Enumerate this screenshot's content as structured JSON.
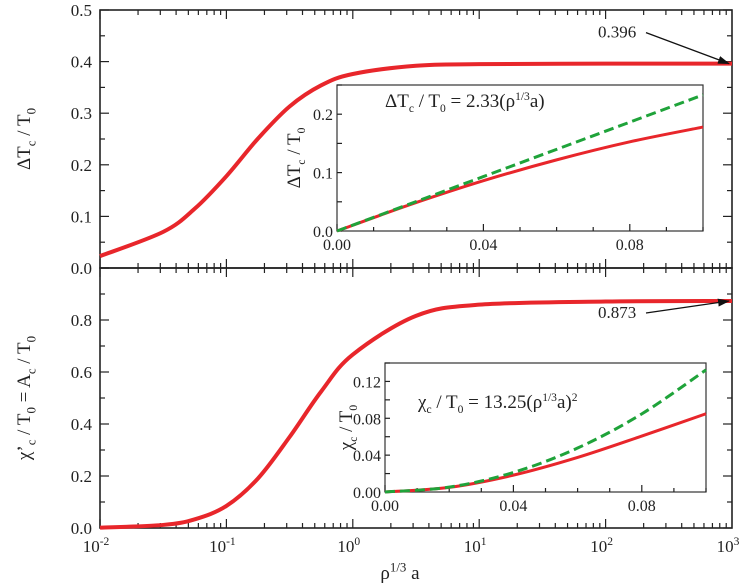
{
  "chart_data": [
    {
      "type": "line",
      "panel": "top-main",
      "xscale": "log",
      "xlim": [
        0.01,
        1000
      ],
      "ylim": [
        0,
        0.5
      ],
      "yticks": [
        "0.0",
        "0.1",
        "0.2",
        "0.3",
        "0.4",
        "0.5"
      ],
      "ylabel": [
        [
          "ΔT",
          "n"
        ],
        [
          "c",
          "sub"
        ],
        [
          " / T",
          "n"
        ],
        [
          "0",
          "sub"
        ]
      ],
      "color": "#e8262b",
      "x": [
        0.01,
        0.0316,
        0.0562,
        0.1,
        0.178,
        0.316,
        0.562,
        1,
        3.16,
        10,
        100,
        1000
      ],
      "y": [
        0.023,
        0.07,
        0.115,
        0.178,
        0.251,
        0.313,
        0.354,
        0.376,
        0.392,
        0.395,
        0.396,
        0.396
      ],
      "annotation": {
        "text": "0.396",
        "value": 0.396
      }
    },
    {
      "type": "line",
      "panel": "bottom-main",
      "xscale": "log",
      "xlim": [
        0.01,
        1000
      ],
      "ylim": [
        0,
        1.0
      ],
      "xticks": [
        [
          "10",
          "-2"
        ],
        [
          "10",
          "-1"
        ],
        [
          "10",
          "0"
        ],
        [
          "10",
          "1"
        ],
        [
          "10",
          "2"
        ],
        [
          "10",
          "3"
        ]
      ],
      "yticks": [
        "0.0",
        "0.2",
        "0.4",
        "0.6",
        "0.8"
      ],
      "xlabel": [
        [
          "ρ",
          "n"
        ],
        [
          "1/3",
          "sup"
        ],
        [
          " a",
          "n"
        ]
      ],
      "ylabel": [
        [
          "χ’",
          "n"
        ],
        [
          "c",
          "sub"
        ],
        [
          " / T",
          "n"
        ],
        [
          "0",
          "sub"
        ],
        [
          " = A",
          "n"
        ],
        [
          "c",
          "sub"
        ],
        [
          " / T",
          "n"
        ],
        [
          "0",
          "sub"
        ]
      ],
      "color": "#e8262b",
      "x": [
        0.01,
        0.0316,
        0.0562,
        0.1,
        0.178,
        0.316,
        0.562,
        1,
        3.16,
        10,
        100,
        1000
      ],
      "y": [
        0.0013,
        0.0118,
        0.0335,
        0.085,
        0.191,
        0.35,
        0.525,
        0.667,
        0.816,
        0.859,
        0.871,
        0.873
      ],
      "annotation": {
        "text": "0.873",
        "value": 0.873
      }
    },
    {
      "type": "line",
      "panel": "top-inset",
      "xlim": [
        0,
        0.1
      ],
      "ylim": [
        0,
        0.25
      ],
      "xticks": [
        "0.00",
        "0.04",
        "0.08"
      ],
      "yticks": [
        "0.0",
        "0.1",
        "0.2"
      ],
      "ylabel": [
        [
          "ΔT",
          "n"
        ],
        [
          "c",
          "sub"
        ],
        [
          " / T",
          "n"
        ],
        [
          "0",
          "sub"
        ]
      ],
      "formula": [
        [
          "ΔT",
          "n"
        ],
        [
          "c",
          "sub"
        ],
        [
          " / T",
          "n"
        ],
        [
          "0",
          "sub"
        ],
        [
          " = 2.33(ρ",
          "n"
        ],
        [
          "1/3",
          "sup"
        ],
        [
          "a)",
          "n"
        ]
      ],
      "x": [
        0,
        0.02,
        0.04,
        0.06,
        0.08,
        0.1
      ],
      "series": [
        {
          "style": "solid",
          "color": "#e8262b",
          "values": [
            0,
            0.0452,
            0.0861,
            0.1218,
            0.1527,
            0.178
          ]
        },
        {
          "style": "dashed",
          "color": "#1fa33a",
          "values": [
            0,
            0.0466,
            0.0932,
            0.1398,
            0.1864,
            0.233
          ]
        }
      ]
    },
    {
      "type": "line",
      "panel": "bottom-inset",
      "xlim": [
        0,
        0.1
      ],
      "ylim": [
        0,
        0.14
      ],
      "xticks": [
        "0.00",
        "0.04",
        "0.08"
      ],
      "yticks": [
        "0.00",
        "0.04",
        "0.08",
        "0.12"
      ],
      "ylabel": [
        [
          "χ",
          "n"
        ],
        [
          "c",
          "sub"
        ],
        [
          " / T",
          "n"
        ],
        [
          "0",
          "sub"
        ]
      ],
      "formula": [
        [
          "χ",
          "n"
        ],
        [
          "c",
          "sub"
        ],
        [
          " / T",
          "n"
        ],
        [
          "0",
          "sub"
        ],
        [
          " = 13.25(ρ",
          "n"
        ],
        [
          "1/3",
          "sup"
        ],
        [
          "a)",
          "n"
        ],
        [
          "2",
          "sup"
        ]
      ],
      "x": [
        0,
        0.02,
        0.04,
        0.06,
        0.08,
        0.1
      ],
      "series": [
        {
          "style": "solid",
          "color": "#e8262b",
          "values": [
            0,
            0.005,
            0.0183,
            0.0375,
            0.0607,
            0.0849
          ]
        },
        {
          "style": "dashed",
          "color": "#1fa33a",
          "values": [
            0,
            0.0053,
            0.0212,
            0.0477,
            0.0848,
            0.1325
          ]
        }
      ]
    }
  ]
}
